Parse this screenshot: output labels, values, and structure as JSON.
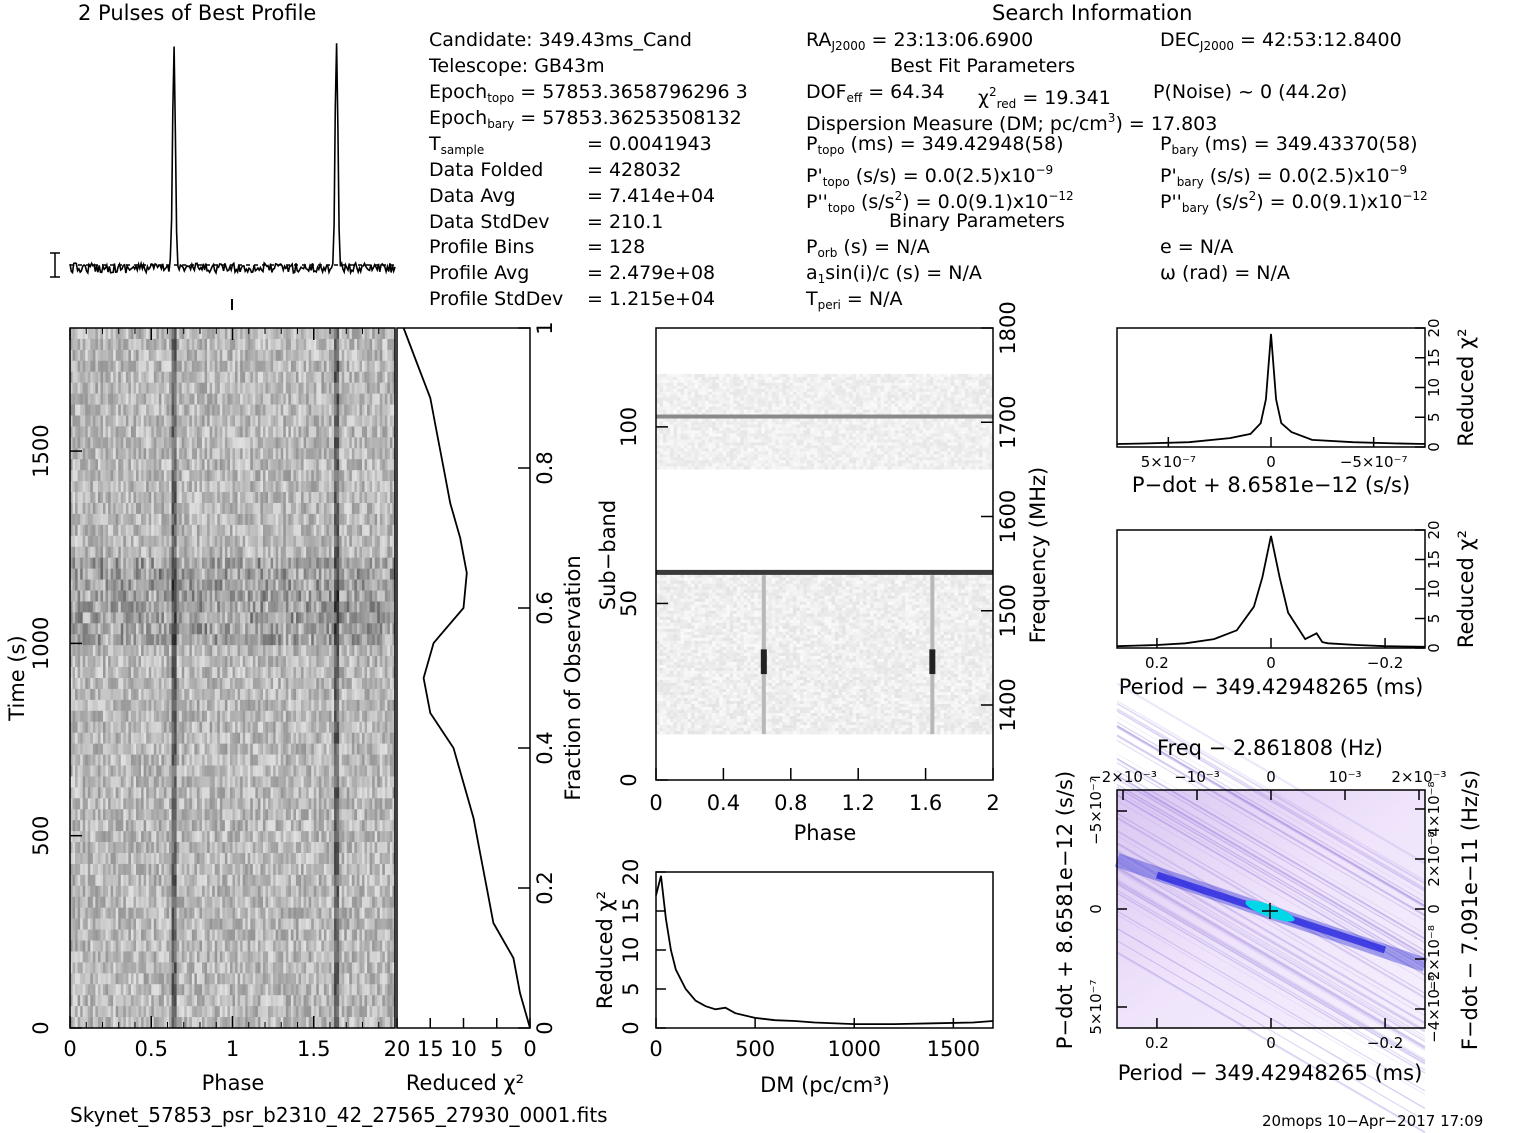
{
  "header": {
    "pulses_title": "2 Pulses of Best Profile",
    "search_title": "Search Information",
    "best_fit_title": "Best Fit Parameters",
    "binary_title": "Binary Parameters"
  },
  "search_info": {
    "candidate": "Candidate:  349.43ms_Cand",
    "telescope": "Telescope:  GB43m",
    "epoch_topo": "Epoch",
    "epoch_topo_sub": "topo",
    "epoch_topo_val": " = 57853.3658796296 3",
    "epoch_bary": "Epoch",
    "epoch_bary_sub": "bary",
    "epoch_bary_val": " = 57853.36253508132",
    "tsample": "T",
    "tsample_sub": "sample",
    "tsample_val": "=  0.0041943",
    "data_folded": "Data Folded",
    "data_folded_val": "=  428032",
    "data_avg": "Data Avg",
    "data_avg_val": "=  7.414e+04",
    "data_stddev": "Data StdDev",
    "data_stddev_val": "=  210.1",
    "profile_bins": "Profile Bins",
    "profile_bins_val": "=  128",
    "profile_avg": "Profile Avg",
    "profile_avg_val": "=  2.479e+08",
    "profile_stddev": "Profile StdDev",
    "profile_stddev_val": "=  1.215e+04"
  },
  "fit_params": {
    "ra": "RA",
    "ra_sub": "J2000",
    "ra_val": " = 23:13:06.6900",
    "dec": "DEC",
    "dec_sub": "J2000",
    "dec_val": " = 42:53:12.8400",
    "dof": "DOF",
    "dof_sub": "eff",
    "dof_val": " = 64.34",
    "chi": "χ",
    "chi_sup": "2",
    "chi_sub": "red",
    "chi_val": " = 19.341",
    "pnoise": "P(Noise) ~ 0   (44.2σ)",
    "dm_line": "Dispersion Measure (DM; pc/cm",
    "dm_sup": "3",
    "dm_val": ") = 17.803",
    "ptopo": "P",
    "ptopo_sub": "topo",
    "ptopo_val": " (ms) =  349.42948(58)",
    "pbary": "P",
    "pbary_sub": "bary",
    "pbary_val": " (ms) =  349.43370(58)",
    "pdtopo": "P'",
    "pdtopo_sub": "topo",
    "pdtopo_val": " (s/s) = 0.0(2.5)x10",
    "pdtopo_sup": "−9",
    "pdbary": "P'",
    "pdbary_sub": "bary",
    "pdbary_val": " (s/s) = 0.0(2.5)x10",
    "pdbary_sup": "−9",
    "pddtopo": "P''",
    "pddtopo_sub": "topo",
    "pddtopo_val": " (s/s",
    "pddtopo_sup2": "2",
    "pddtopo_val2": ") = 0.0(9.1)x10",
    "pddtopo_sup": "−12",
    "pddbary": "P''",
    "pddbary_sub": "bary",
    "pddbary_val": " (s/s",
    "pddbary_sup2": "2",
    "pddbary_val2": ") = 0.0(9.1)x10",
    "pddbary_sup": "−12"
  },
  "binary_params": {
    "porb": "P",
    "porb_sub": "orb",
    "porb_val": " (s) = N/A",
    "ecc": "e = N/A",
    "a1": "a",
    "a1_sub": "1",
    "a1_val": "sin(i)/c (s) = N/A",
    "omega": "ω (rad) = N/A",
    "tperi": "T",
    "tperi_sub": "peri",
    "tperi_val": " = N/A"
  },
  "footer": {
    "filename": "Skynet_57853_psr_b2310_42_27565_27930_0001.fits",
    "stamp": "20mops 10−Apr−2017 17:09"
  },
  "chart_data": [
    {
      "name": "profile",
      "type": "line",
      "title": "2 Pulses of Best Profile",
      "x": [
        0,
        0.63,
        0.65,
        1.0,
        1.63,
        1.65,
        2.0
      ],
      "peaks_phase": [
        0.64,
        1.64
      ],
      "note_bins": 128
    },
    {
      "name": "time-phase",
      "type": "heatmap",
      "xlabel": "Phase",
      "ylabel": "Time (s)",
      "xticks": [
        "0",
        "0.5",
        "1",
        "1.5"
      ],
      "yticks": [
        "0",
        "500",
        "1000",
        "1500"
      ],
      "xlim": [
        0,
        2
      ],
      "ylim": [
        0,
        1820
      ],
      "pulse_phases": [
        0.64,
        1.64
      ]
    },
    {
      "name": "time-chi2",
      "type": "line",
      "xlabel": "Reduced χ²",
      "ylabel": "Fraction of Observation",
      "xticks": [
        "20",
        "15",
        "10",
        "5",
        "0"
      ],
      "yticks": [
        "0",
        "0.2",
        "0.4",
        "0.6",
        "0.8",
        "1"
      ],
      "frac": [
        0,
        0.05,
        0.1,
        0.15,
        0.2,
        0.25,
        0.3,
        0.35,
        0.4,
        0.45,
        0.5,
        0.55,
        0.6,
        0.65,
        0.7,
        0.75,
        0.8,
        0.85,
        0.9,
        0.95,
        1.0
      ],
      "chi2": [
        0,
        1.5,
        2.5,
        5.5,
        6.5,
        7.5,
        8.5,
        10,
        11.5,
        15,
        16,
        14.5,
        10,
        9.5,
        10.5,
        12,
        13,
        14,
        15,
        17,
        19
      ]
    },
    {
      "name": "subband-phase",
      "type": "heatmap",
      "xlabel": "Phase",
      "ylabel": "Sub−band",
      "y2label": "Frequency (MHz)",
      "xticks": [
        "0",
        "0.4",
        "0.8",
        "1.2",
        "1.6",
        "2"
      ],
      "yticks": [
        "0",
        "50",
        "100"
      ],
      "y2ticks": [
        "1400",
        "1500",
        "1600",
        "1700",
        "1800"
      ],
      "xlim": [
        0,
        2
      ],
      "ylim": [
        0,
        128
      ]
    },
    {
      "name": "dm-chi2",
      "type": "line",
      "xlabel": "DM (pc/cm³)",
      "ylabel": "Reduced χ²",
      "xticks": [
        "0",
        "500",
        "1000",
        "1500"
      ],
      "yticks": [
        "0",
        "5",
        "10",
        "15",
        "20"
      ],
      "x": [
        0,
        25,
        50,
        75,
        100,
        150,
        200,
        250,
        300,
        350,
        400,
        500,
        600,
        700,
        800,
        1000,
        1200,
        1400,
        1600,
        1700
      ],
      "y": [
        17,
        19.5,
        14,
        10,
        7.5,
        5,
        3.5,
        2.8,
        2.4,
        2.6,
        1.9,
        1.3,
        1.0,
        0.9,
        0.7,
        0.5,
        0.5,
        0.6,
        0.7,
        0.9
      ],
      "xlim": [
        0,
        1700
      ],
      "ylim": [
        0,
        20
      ]
    },
    {
      "name": "pdot-chi2",
      "type": "line",
      "xlabel": "P−dot + 8.6581e−12 (s/s)",
      "ylabel": "Reduced χ²",
      "xticks": [
        "5×10⁻⁷",
        "0",
        "−5×10⁻⁷"
      ],
      "yticks": [
        "0",
        "5",
        "10",
        "15",
        "20"
      ],
      "x": [
        -7.5,
        -6,
        -4,
        -2,
        -1,
        -0.5,
        -0.25,
        0,
        0.25,
        0.5,
        1,
        2,
        4,
        6,
        7.5
      ],
      "y": [
        0.5,
        0.6,
        0.8,
        1.2,
        2.5,
        4,
        8,
        19,
        8,
        4,
        2.2,
        1.5,
        0.8,
        0.6,
        0.5
      ]
    },
    {
      "name": "period-chi2",
      "type": "line",
      "xlabel": "Period − 349.42948265 (ms)",
      "ylabel": "Reduced χ²",
      "xticks": [
        "0.2",
        "0",
        "−0.2"
      ],
      "yticks": [
        "0",
        "5",
        "10",
        "15",
        "20"
      ],
      "x": [
        0.27,
        0.2,
        0.15,
        0.1,
        0.06,
        0.03,
        0.015,
        0,
        -0.015,
        -0.03,
        -0.06,
        -0.08,
        -0.09,
        -0.1,
        -0.15,
        -0.2,
        -0.27
      ],
      "y": [
        0.3,
        0.5,
        0.8,
        1.5,
        3,
        7,
        12,
        19,
        12,
        6,
        1.5,
        2.5,
        1.0,
        0.8,
        0.5,
        0.3,
        0.2
      ]
    },
    {
      "name": "period-pdot",
      "type": "heatmap",
      "title": "Freq − 2.861808 (Hz)",
      "xlabel": "Period − 349.42948265 (ms)",
      "ylabel": "P−dot + 8.6581e−12 (s/s)",
      "y2label": "F−dot − 7.091e−11 (Hz/s)",
      "xticks": [
        "0.2",
        "0",
        "−0.2"
      ],
      "x2ticks": [
        "−2×10⁻³",
        "−10⁻³",
        "0",
        "10⁻³",
        "2×10⁻³"
      ],
      "yticks": [
        "5×10⁻⁷",
        "0",
        "−5×10⁻⁷"
      ],
      "y2ticks": [
        "−4×10⁻⁸",
        "−2×10⁻⁸",
        "0",
        "2×10⁻⁸",
        "4×10⁻⁸"
      ]
    }
  ]
}
